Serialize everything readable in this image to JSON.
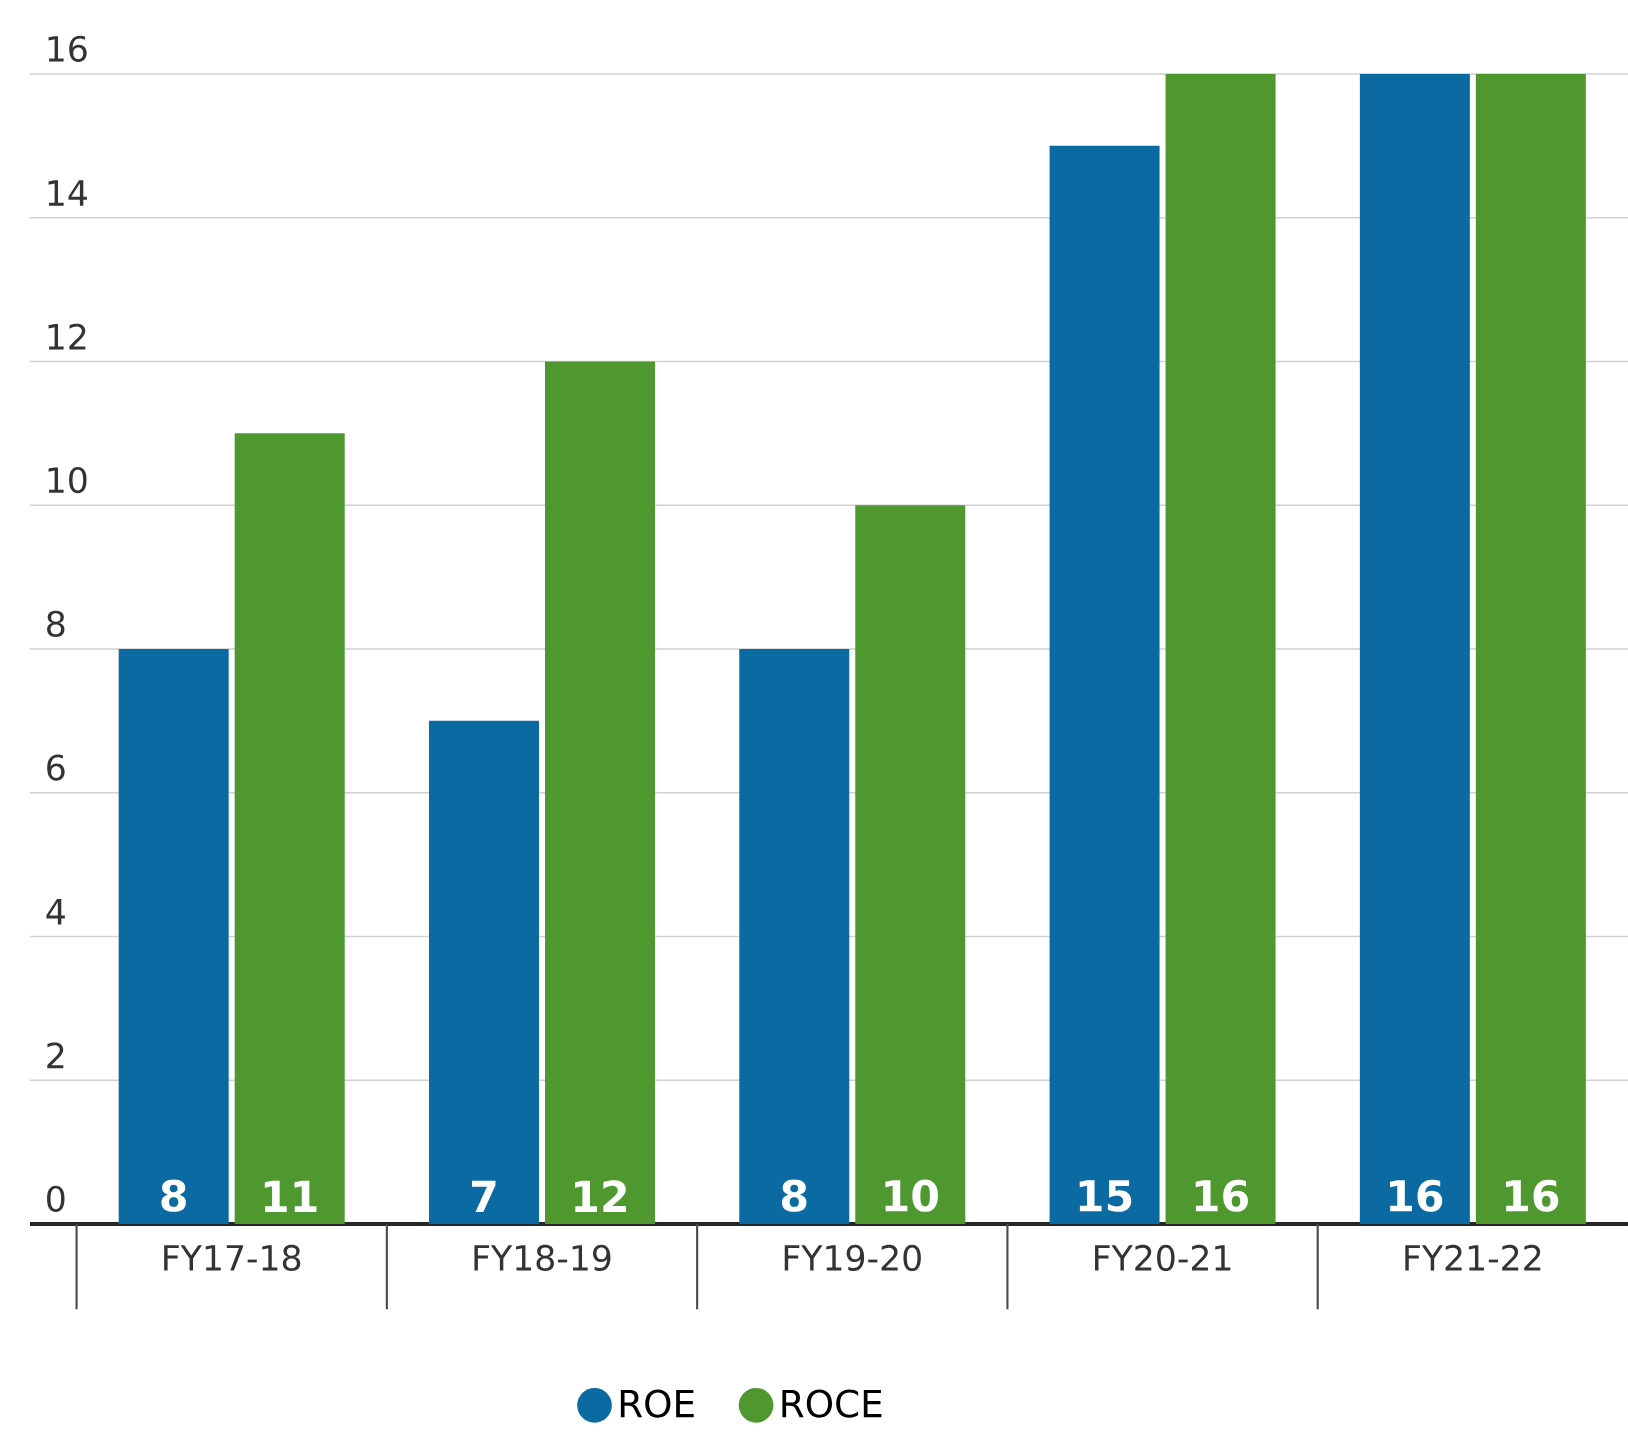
{
  "chart_data": {
    "type": "bar",
    "categories": [
      "FY17-18",
      "FY18-19",
      "FY19-20",
      "FY20-21",
      "FY21-22"
    ],
    "series": [
      {
        "name": "ROE",
        "color": "#0b6aa2",
        "values": [
          8,
          7,
          8,
          15,
          16
        ]
      },
      {
        "name": "ROCE",
        "color": "#4f982f",
        "values": [
          11,
          12,
          10,
          16,
          16
        ]
      }
    ],
    "ylim": [
      0,
      16
    ],
    "yticks": [
      0,
      2,
      4,
      6,
      8,
      10,
      12,
      14,
      16
    ],
    "grid": "y",
    "legend": "bottom",
    "data_labels": true
  }
}
